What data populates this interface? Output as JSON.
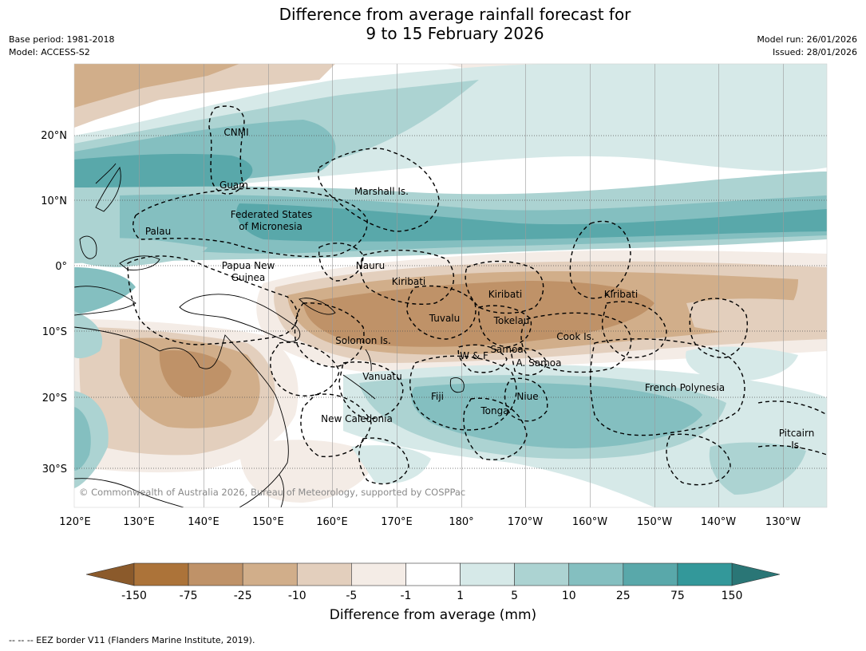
{
  "title_line1": "Difference from average rainfall forecast for",
  "title_line2": "9 to 15 February 2026",
  "base_period": "Base period: 1981-2018",
  "model": "Model: ACCESS-S2",
  "model_run": "Model run: 26/01/2026",
  "issued": "Issued: 28/01/2026",
  "lon_ticks": [
    "120°E",
    "130°E",
    "140°E",
    "150°E",
    "160°E",
    "170°E",
    "180°",
    "170°W",
    "160°W",
    "150°W",
    "140°W",
    "130°W"
  ],
  "lat_ticks": [
    "20°N",
    "10°N",
    "0°",
    "10°S",
    "20°S",
    "30°S"
  ],
  "regions": [
    "CNMI",
    "Guam",
    "Marshall Is.",
    "Federated States",
    "of Micronesia",
    "Palau",
    "Papua New",
    "Guinea",
    "Nauru",
    "Kiribati",
    "Kiribati",
    "Kiribati",
    "Tuvalu",
    "Tokelau",
    "Cook Is.",
    "Solomon Is.",
    "W & F",
    "Samoa",
    "A. Samoa",
    "Vanuatu",
    "Fiji",
    "Niue",
    "Tonga",
    "New Caledonia",
    "French Polynesia",
    "Pitcairn",
    "Is."
  ],
  "copyright": "© Commonwealth of Australia 2026, Bureau of Meteorology, supported by COSPPac",
  "colorbar": {
    "labels": [
      "-150",
      "-75",
      "-25",
      "-10",
      "-5",
      "-1",
      "1",
      "5",
      "10",
      "25",
      "75",
      "150"
    ],
    "colors": [
      "#ac7339",
      "#bf9268",
      "#d1ae8a",
      "#e3cfbd",
      "#f4ece6",
      "#ffffff",
      "#d6e9e8",
      "#acd3d2",
      "#84bfc0",
      "#59a8aa",
      "#33989a"
    ],
    "extend_low": "#8b5a2b",
    "extend_high": "#2a7676",
    "title": "Difference from average (mm)"
  },
  "eez_note": "-- -- -- EEZ border V11 (Flanders Marine Institute, 2019)."
}
